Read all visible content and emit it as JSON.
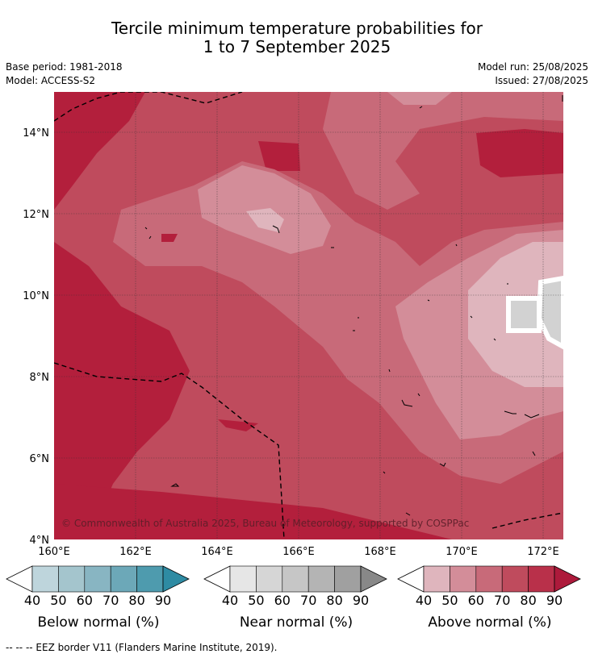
{
  "title": {
    "line1": "Tercile minimum temperature probabilities for",
    "line2": "1 to 7 September 2025"
  },
  "meta": {
    "base_period": "Base period: 1981-2018",
    "model": "Model: ACCESS-S2",
    "model_run": "Model run: 25/08/2025",
    "issued": "Issued: 27/08/2025"
  },
  "map": {
    "lat_labels": [
      "14°N",
      "12°N",
      "10°N",
      "8°N",
      "6°N",
      "4°N"
    ],
    "lon_labels": [
      "160°E",
      "162°E",
      "164°E",
      "166°E",
      "168°E",
      "170°E",
      "172°E"
    ],
    "copyright": "© Commonwealth of Australia 2025, Bureau of Meteorology, supported by COSPPac",
    "category": "Above normal",
    "colors": {
      "above_50": "#dfb5bd",
      "above_60": "#d38d99",
      "above_70": "#c86a79",
      "above_80": "#bf4b5d",
      "above_90": "#b31f3c",
      "near_40": "#d2d2d2"
    }
  },
  "colorbars": [
    {
      "title": "Below normal (%)",
      "ticks": [
        "40",
        "50",
        "60",
        "70",
        "80",
        "90"
      ],
      "colors": [
        "#ffffff",
        "#bed5dc",
        "#a4c5cd",
        "#88b5c2",
        "#6ca8b8",
        "#4e9bae",
        "#2e8ba3"
      ]
    },
    {
      "title": "Near normal (%)",
      "ticks": [
        "40",
        "50",
        "60",
        "70",
        "80",
        "90"
      ],
      "colors": [
        "#ffffff",
        "#e6e6e6",
        "#d6d6d6",
        "#c6c6c6",
        "#b4b4b4",
        "#a0a0a0",
        "#888888"
      ]
    },
    {
      "title": "Above normal (%)",
      "ticks": [
        "40",
        "50",
        "60",
        "70",
        "80",
        "90"
      ],
      "colors": [
        "#ffffff",
        "#dfb5bd",
        "#d38d99",
        "#c86a79",
        "#bf4b5d",
        "#b9304a",
        "#ad1a3b"
      ]
    }
  ],
  "footnote": "--  --  -- EEZ border V11 (Flanders Marine Institute, 2019)."
}
